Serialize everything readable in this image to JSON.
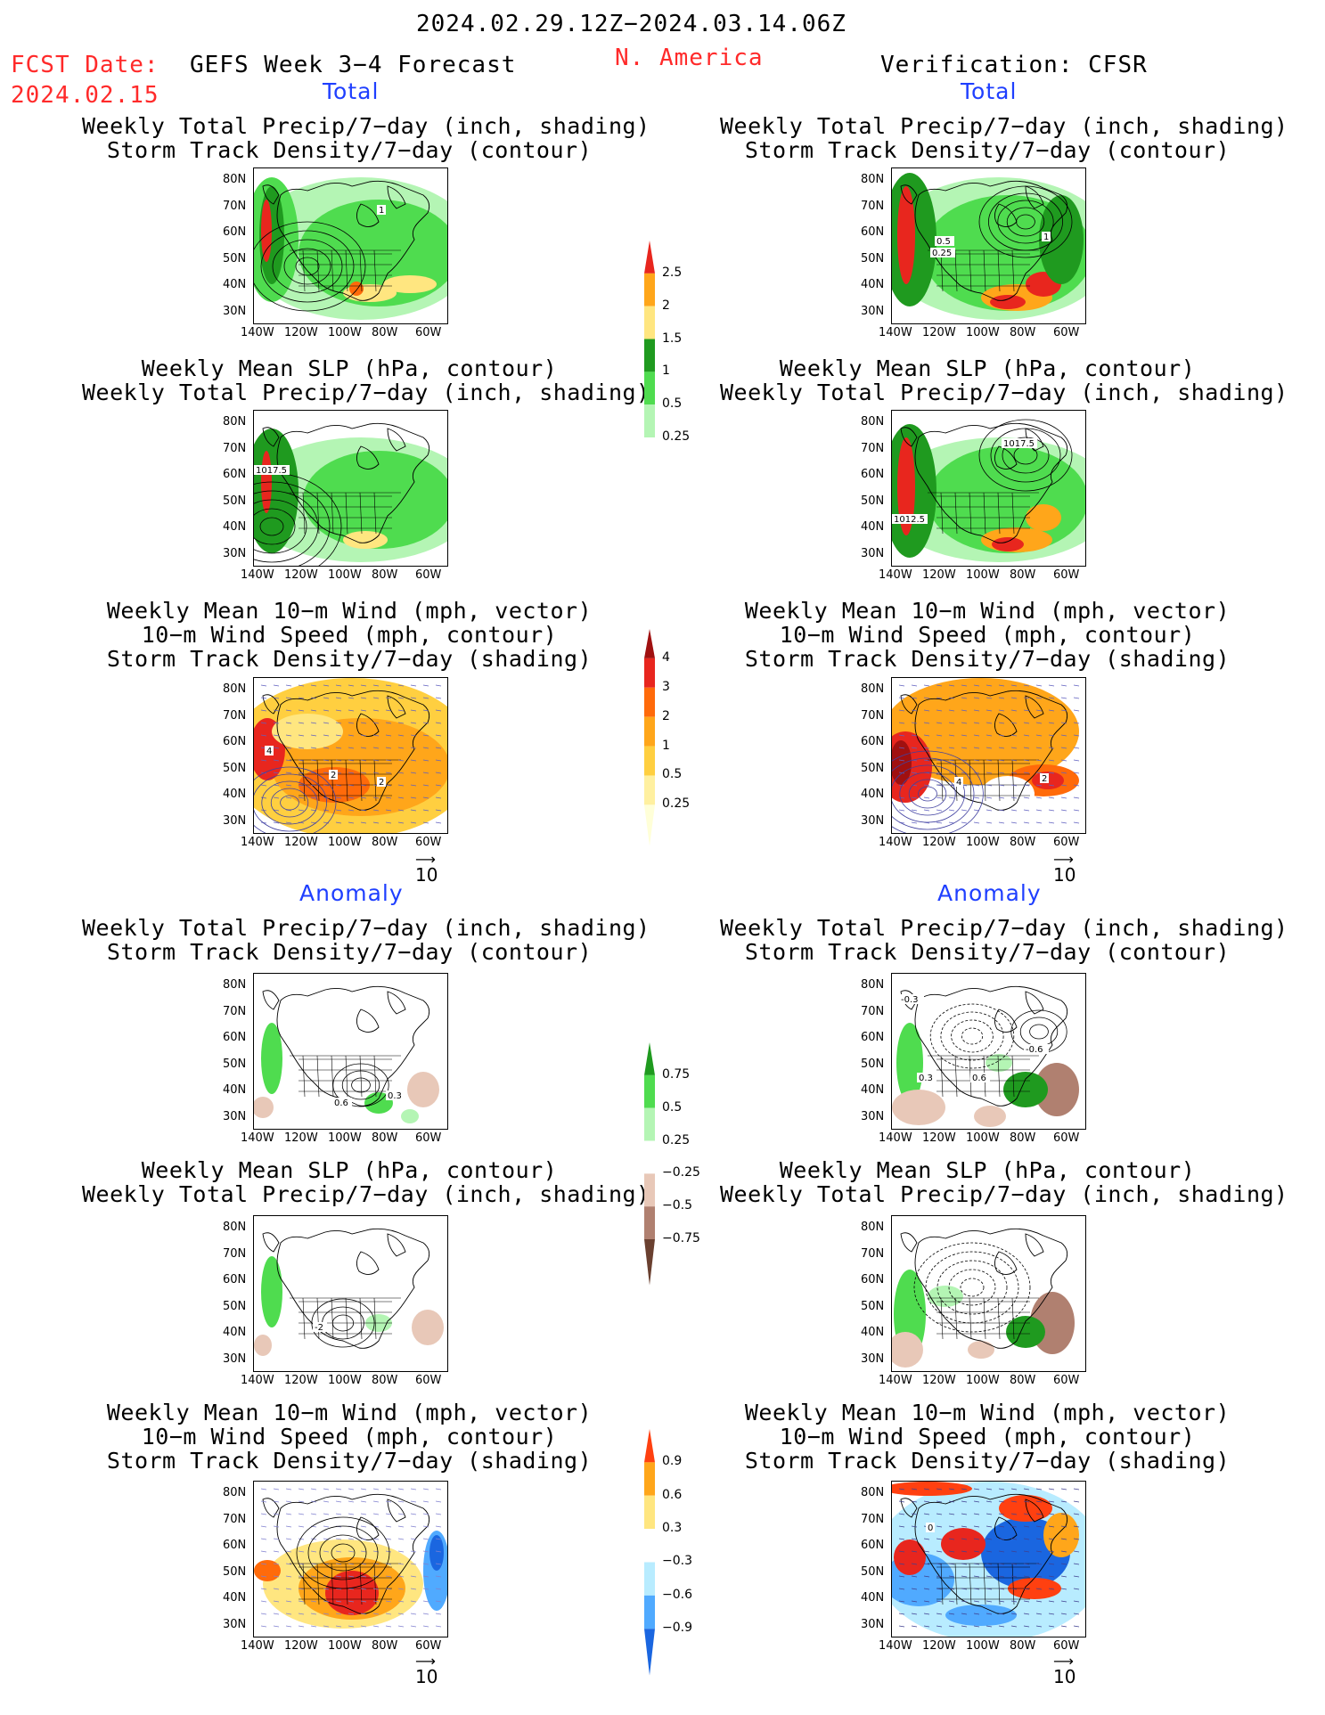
{
  "header": {
    "date_range": "2024.02.29.12Z−2024.03.14.06Z",
    "fcst_label": "FCST Date:",
    "fcst_date": "2024.02.15",
    "forecast_title": "GEFS Week 3−4 Forecast",
    "region": "N. America",
    "verification": "Verification: CFSR"
  },
  "sections": {
    "total": "Total",
    "anomaly": "Anomaly"
  },
  "panel_titles": {
    "precip_storm": [
      "Weekly Total Precip/7−day (inch, shading)",
      "Storm Track Density/7−day (contour)"
    ],
    "slp_precip": [
      "Weekly Mean SLP (hPa, contour)",
      "Weekly Total Precip/7−day (inch, shading)"
    ],
    "wind_storm": [
      "Weekly Mean 10−m Wind (mph, vector)",
      "10−m Wind Speed (mph, contour)",
      "Storm Track Density/7−day (shading)"
    ]
  },
  "axes": {
    "lat_ticks": [
      "80N",
      "70N",
      "60N",
      "50N",
      "40N",
      "30N"
    ],
    "lon_ticks": [
      "140W",
      "120W",
      "100W",
      "80W",
      "60W"
    ]
  },
  "vector_ref": "10",
  "colorbars": {
    "precip_total": {
      "labels": [
        "2.5",
        "2",
        "1.5",
        "1",
        "0.5",
        "0.25"
      ],
      "colors": [
        "#e8261e",
        "#ffa61a",
        "#ffe680",
        "#1f9a1f",
        "#4fdc4f",
        "#b4f5b4"
      ]
    },
    "storm_total": {
      "labels": [
        "4",
        "3",
        "2",
        "1",
        "0.5",
        "0.25"
      ],
      "colors": [
        "#a01010",
        "#e8261e",
        "#ff6a0a",
        "#ffa61a",
        "#ffcf40",
        "#fff0a0",
        "#ffffd8"
      ]
    },
    "precip_anom": {
      "labels": [
        "0.75",
        "0.5",
        "0.25",
        "−0.25",
        "−0.5",
        "−0.75"
      ],
      "colors": [
        "#1f9a1f",
        "#4fdc4f",
        "#b4f5b4",
        "#ffffff",
        "#e8c8b8",
        "#b08070",
        "#6a4030"
      ]
    },
    "storm_anom": {
      "labels": [
        "0.9",
        "0.6",
        "0.3",
        "−0.3",
        "−0.6",
        "−0.9"
      ],
      "colors": [
        "#ff4010",
        "#ffa61a",
        "#ffe680",
        "#ffffff",
        "#b8ecff",
        "#50aaff",
        "#1a66e0"
      ]
    }
  },
  "map_annotations": {
    "l1": "1",
    "l2": "1017.5",
    "l3": "4",
    "l3b": "2",
    "l3c": "2",
    "l4": "0.6",
    "l4b": "0.3",
    "l5": "-2",
    "r1": "0.5",
    "r1b": "0.25",
    "r1c": "1",
    "r2": "1017.5",
    "r2b": "1012.5",
    "r3": "4",
    "r3b": "2",
    "r4": "-0.3",
    "r4b": "-0.6",
    "r4c": "0.3",
    "r4d": "0.6",
    "r6": "0"
  },
  "colors": {
    "red": "#ff2a2a",
    "blue": "#1f3fff"
  }
}
